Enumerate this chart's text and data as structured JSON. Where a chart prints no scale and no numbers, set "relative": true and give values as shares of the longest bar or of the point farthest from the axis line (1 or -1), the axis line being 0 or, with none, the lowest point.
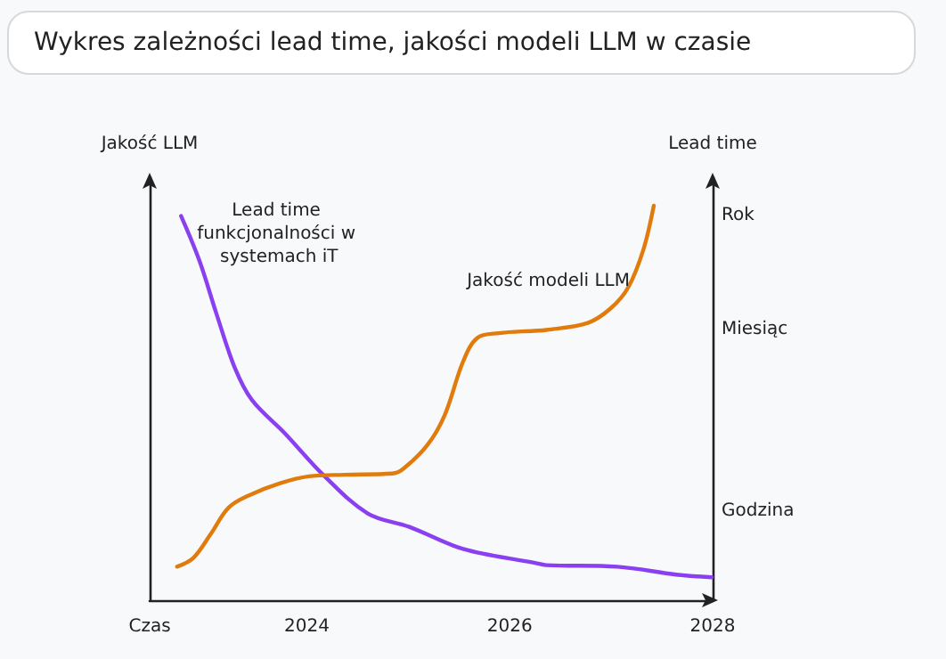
{
  "chart_data": {
    "type": "line",
    "title": "Wykres zależności lead time, jakości modeli LLM w czasie",
    "ylabel": "Jakość LLM",
    "y2label": "Lead time",
    "relative": true,
    "legend": false,
    "grid": false,
    "marker": "none",
    "line_style": "solid",
    "xlim": [
      2022.45,
      2028
    ],
    "xticks": [
      {
        "value": 2022.45,
        "label": "Czas"
      },
      2024,
      2026,
      2028
    ],
    "annotations": [
      "Rok",
      "Miesiąc",
      "Godzina"
    ],
    "series": [
      {
        "name": "Lead time funkcjonalności w systemach iT",
        "color": "#8a3ff0",
        "x": [
          2022.76,
          2022.94,
          2023.11,
          2023.29,
          2023.46,
          2023.78,
          2024.16,
          2024.6,
          2025.01,
          2025.54,
          2026.24,
          2026.36,
          2027.06,
          2027.64,
          2027.99
        ],
        "values": [
          0.974,
          0.861,
          0.725,
          0.589,
          0.507,
          0.424,
          0.318,
          0.22,
          0.186,
          0.13,
          0.095,
          0.089,
          0.085,
          0.065,
          0.058
        ]
      },
      {
        "name": "Jakość modeli LLM",
        "color": "#e07b0c",
        "x": [
          2022.72,
          2022.88,
          2023.05,
          2023.23,
          2023.43,
          2023.73,
          2024.02,
          2024.37,
          2024.84,
          2024.95,
          2025.19,
          2025.36,
          2025.54,
          2025.68,
          2025.89,
          2026.24,
          2026.36,
          2026.77,
          2027.0,
          2027.17,
          2027.32,
          2027.42
        ],
        "values": [
          0.085,
          0.107,
          0.167,
          0.235,
          0.266,
          0.296,
          0.314,
          0.318,
          0.321,
          0.333,
          0.394,
          0.47,
          0.605,
          0.665,
          0.677,
          0.683,
          0.685,
          0.703,
          0.741,
          0.794,
          0.891,
          1.0
        ]
      }
    ]
  }
}
